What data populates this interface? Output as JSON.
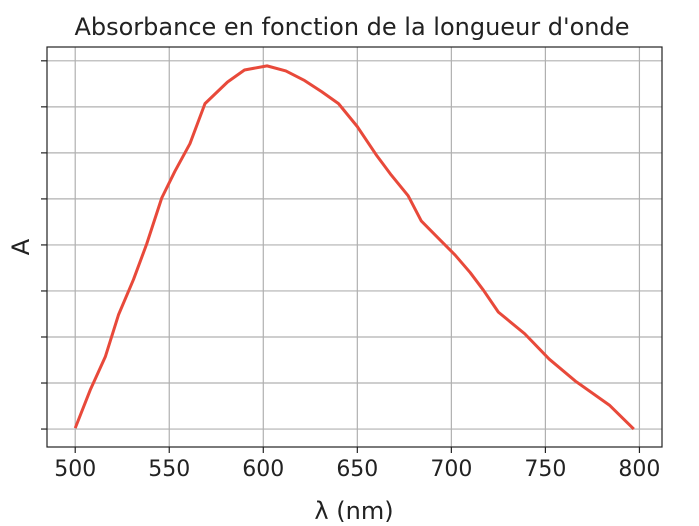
{
  "chart_data": {
    "type": "line",
    "title": "Absorbance en fonction de la longueur d'onde",
    "xlabel": "λ (nm)",
    "ylabel": "A",
    "x": [
      500,
      508,
      516,
      523,
      531,
      538,
      546,
      553,
      561,
      569,
      581,
      590,
      602,
      612,
      622,
      631,
      640,
      650,
      660,
      668,
      677,
      684,
      693,
      702,
      710,
      717,
      725,
      739,
      752,
      766,
      784,
      797
    ],
    "series": [
      {
        "name": "A",
        "color": "#e8493a",
        "values": [
          0.02,
          0.85,
          1.57,
          2.48,
          3.25,
          4.02,
          5.02,
          5.6,
          6.2,
          7.07,
          7.54,
          7.8,
          7.89,
          7.78,
          7.57,
          7.33,
          7.07,
          6.57,
          5.96,
          5.52,
          5.07,
          4.52,
          4.15,
          3.78,
          3.4,
          3.02,
          2.54,
          2.07,
          1.52,
          1.04,
          0.52,
          0.0
        ]
      }
    ],
    "xlim": [
      485,
      812
    ],
    "ylim": [
      -0.39,
      8.3
    ],
    "xticks": [
      500,
      550,
      600,
      650,
      700,
      750,
      800
    ],
    "yticks": [
      0,
      1,
      2,
      3,
      4,
      5,
      6,
      7,
      8
    ],
    "grid": true
  }
}
